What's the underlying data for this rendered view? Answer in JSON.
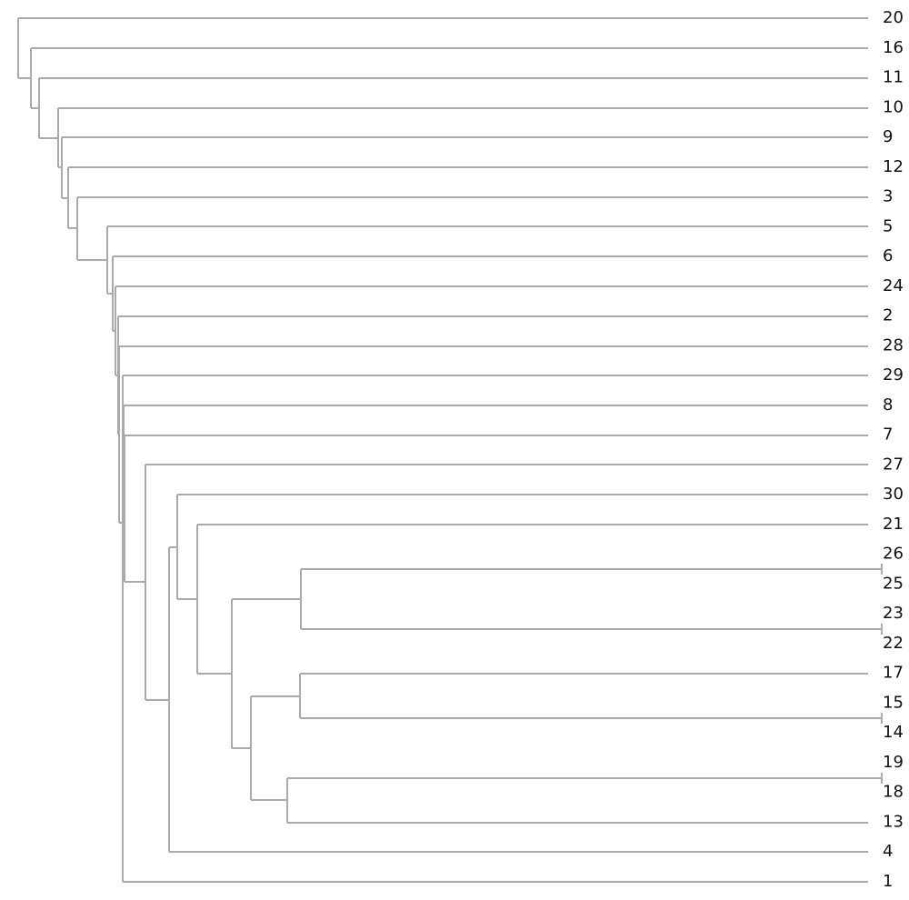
{
  "leaves": [
    "20",
    "16",
    "11",
    "10",
    "9",
    "12",
    "3",
    "5",
    "6",
    "24",
    "2",
    "28",
    "29",
    "8",
    "7",
    "27",
    "30",
    "21",
    "26",
    "25",
    "23",
    "22",
    "17",
    "15",
    "14",
    "19",
    "18",
    "13",
    "4",
    "1"
  ]
}
